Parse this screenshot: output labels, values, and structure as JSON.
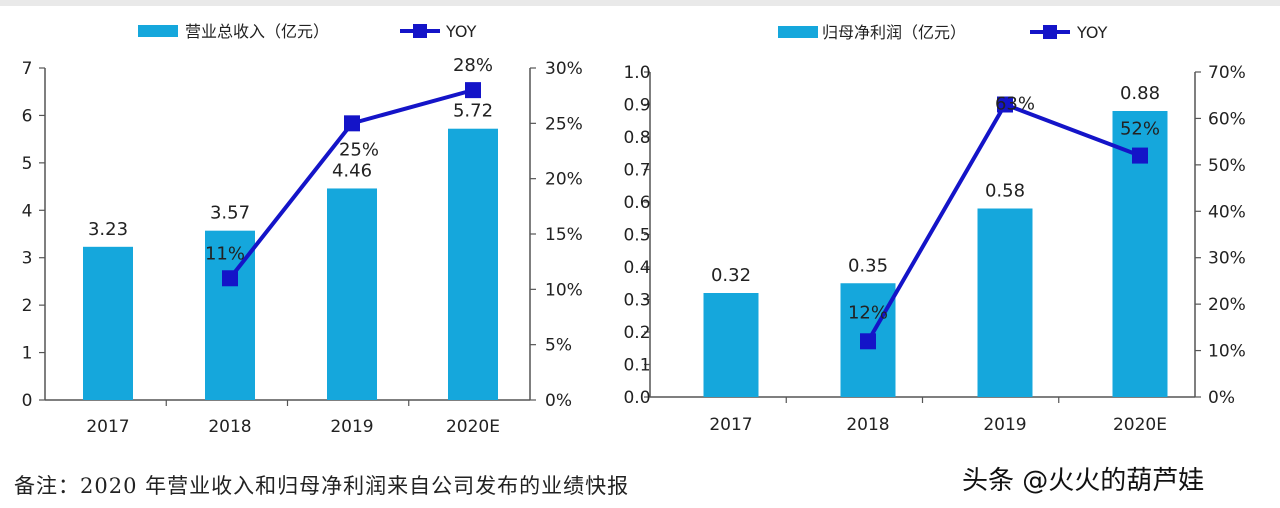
{
  "chart_data": [
    {
      "type": "bar+line",
      "categories": [
        "2017",
        "2018",
        "2019",
        "2020E"
      ],
      "bar_series": {
        "name": "营业总收入（亿元）",
        "values": [
          3.23,
          3.57,
          4.46,
          5.72
        ],
        "labels": [
          "3.23",
          "3.57",
          "4.46",
          "5.72"
        ]
      },
      "line_series": {
        "name": "YOY",
        "values": [
          null,
          11,
          25,
          28
        ],
        "labels": [
          "",
          "11%",
          "25%",
          "28%"
        ]
      },
      "y_left": {
        "min": 0,
        "max": 7,
        "ticks": [
          "0",
          "1",
          "2",
          "3",
          "4",
          "5",
          "6",
          "7"
        ]
      },
      "y_right": {
        "min": 0,
        "max": 30,
        "ticks": [
          "0%",
          "5%",
          "10%",
          "15%",
          "20%",
          "25%",
          "30%"
        ]
      },
      "legend": "top",
      "grid": false
    },
    {
      "type": "bar+line",
      "categories": [
        "2017",
        "2018",
        "2019",
        "2020E"
      ],
      "bar_series": {
        "name": "归母净利润（亿元）",
        "values": [
          0.32,
          0.35,
          0.58,
          0.88
        ],
        "labels": [
          "0.32",
          "0.35",
          "0.58",
          "0.88"
        ]
      },
      "line_series": {
        "name": "YOY",
        "values": [
          null,
          12,
          63,
          52
        ],
        "labels": [
          "",
          "12%",
          "63%",
          "52%"
        ]
      },
      "y_left": {
        "min": 0,
        "max": 1.0,
        "ticks": [
          "0.0",
          "0.1",
          "0.2",
          "0.3",
          "0.4",
          "0.5",
          "0.6",
          "0.7",
          "0.8",
          "0.9",
          "1.0"
        ]
      },
      "y_right": {
        "min": 0,
        "max": 70,
        "ticks": [
          "0%",
          "10%",
          "20%",
          "30%",
          "40%",
          "50%",
          "60%",
          "70%"
        ]
      },
      "legend": "top",
      "grid": false
    }
  ],
  "colors": {
    "bar": "#15a7dc",
    "line": "#1414c8",
    "axis": "#555555",
    "text": "#222222"
  },
  "note": "备注：2020 年营业收入和归母净利润来自公司发布的业绩快报",
  "watermark": "头条 @火火的葫芦娃"
}
